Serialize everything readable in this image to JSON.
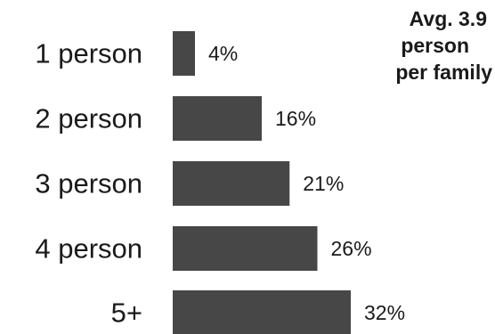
{
  "chart_data": {
    "type": "bar",
    "orientation": "horizontal",
    "categories": [
      "1 person",
      "2 person",
      "3 person",
      "4 person",
      "5+"
    ],
    "values": [
      4,
      16,
      21,
      26,
      32
    ],
    "value_labels": [
      "4%",
      "16%",
      "21%",
      "26%",
      "32%"
    ],
    "unit": "%",
    "annotation": {
      "lines": [
        "Avg. 3.9",
        "person",
        "per family"
      ]
    },
    "bar_color": "#474747",
    "grid": false,
    "legend": false
  }
}
